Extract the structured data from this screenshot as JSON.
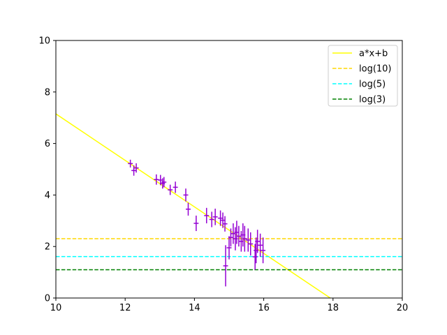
{
  "chart_data": {
    "type": "scatter",
    "title": "",
    "xlabel": "",
    "ylabel": "",
    "xlim": [
      10,
      20
    ],
    "ylim": [
      0,
      10
    ],
    "x_ticks": [
      10,
      12,
      14,
      16,
      18,
      20
    ],
    "y_ticks": [
      0,
      2,
      4,
      6,
      8,
      10
    ],
    "grid": false,
    "legend_position": "top-right",
    "points": {
      "color": "#9400d3",
      "x": [
        12.15,
        12.25,
        12.32,
        12.9,
        13.02,
        13.08,
        13.12,
        13.3,
        13.45,
        13.75,
        13.82,
        14.05,
        14.35,
        14.5,
        14.6,
        14.75,
        14.82,
        14.88,
        14.9,
        15.0,
        15.05,
        15.12,
        15.18,
        15.22,
        15.28,
        15.35,
        15.4,
        15.45,
        15.55,
        15.62,
        15.75,
        15.78,
        15.82,
        15.9,
        15.98
      ],
      "y": [
        5.22,
        4.95,
        5.05,
        4.6,
        4.58,
        4.45,
        4.5,
        4.2,
        4.3,
        4.0,
        3.45,
        2.9,
        3.2,
        3.05,
        3.15,
        3.1,
        3.02,
        2.88,
        1.25,
        1.95,
        2.35,
        2.5,
        2.3,
        2.55,
        2.4,
        2.2,
        2.45,
        2.3,
        2.25,
        2.1,
        1.6,
        1.85,
        2.2,
        2.05,
        1.85
      ],
      "yerr": [
        0.15,
        0.2,
        0.18,
        0.2,
        0.2,
        0.2,
        0.2,
        0.2,
        0.22,
        0.25,
        0.25,
        0.3,
        0.3,
        0.3,
        0.32,
        0.3,
        0.3,
        0.3,
        0.8,
        0.45,
        0.35,
        0.4,
        0.45,
        0.45,
        0.4,
        0.4,
        0.45,
        0.5,
        0.45,
        0.45,
        0.5,
        0.5,
        0.45,
        0.45,
        0.5
      ],
      "xerr": [
        0.07,
        0.07,
        0.07,
        0.07,
        0.07,
        0.07,
        0.07,
        0.07,
        0.07,
        0.07,
        0.07,
        0.07,
        0.07,
        0.07,
        0.07,
        0.07,
        0.07,
        0.07,
        0.07,
        0.07,
        0.07,
        0.07,
        0.07,
        0.07,
        0.07,
        0.07,
        0.07,
        0.07,
        0.07,
        0.07,
        0.07,
        0.07,
        0.07,
        0.07,
        0.07
      ]
    },
    "lines": [
      {
        "name": "a*x+b",
        "kind": "linear",
        "x": [
          10,
          17.92
        ],
        "y": [
          7.15,
          0
        ],
        "color": "#ffff00",
        "dash": "solid"
      },
      {
        "name": "log(10)",
        "kind": "hline",
        "y": 2.302585,
        "color": "#ffd700",
        "dash": "dashed"
      },
      {
        "name": "log(5)",
        "kind": "hline",
        "y": 1.609438,
        "color": "#00ffff",
        "dash": "dashed"
      },
      {
        "name": "log(3)",
        "kind": "hline",
        "y": 1.098612,
        "color": "#008000",
        "dash": "dashed"
      }
    ]
  }
}
